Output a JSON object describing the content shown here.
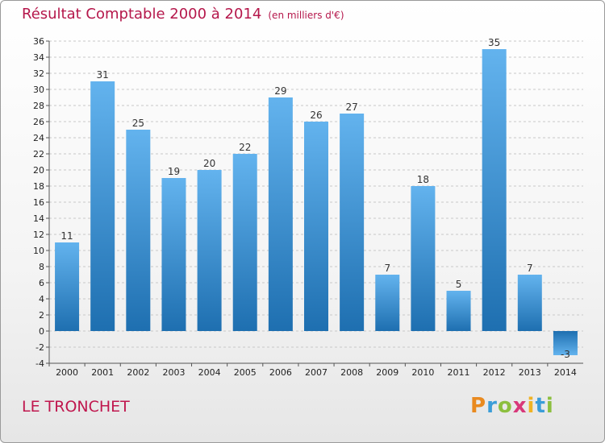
{
  "title": "Résultat Comptable 2000 à 2014",
  "unit_note": "(en milliers d'€)",
  "commune": "LE TRONCHET",
  "logo_text": "Proxiti",
  "colors": {
    "title": "#b5174b",
    "bar_top": "#63b3ee",
    "bar_bottom": "#1e6fb0",
    "grid": "#c8c8c8"
  },
  "chart_data": {
    "type": "bar",
    "categories": [
      "2000",
      "2001",
      "2002",
      "2003",
      "2004",
      "2005",
      "2006",
      "2007",
      "2008",
      "2009",
      "2010",
      "2011",
      "2012",
      "2013",
      "2014"
    ],
    "values": [
      11,
      31,
      25,
      19,
      20,
      22,
      29,
      26,
      27,
      7,
      18,
      5,
      35,
      7,
      -3
    ],
    "title": "Résultat Comptable 2000 à 2014",
    "xlabel": "",
    "ylabel": "",
    "ylim": [
      -4,
      36
    ],
    "yticks": [
      -4,
      -2,
      0,
      2,
      4,
      6,
      8,
      10,
      12,
      14,
      16,
      18,
      20,
      22,
      24,
      26,
      28,
      30,
      32,
      34,
      36
    ],
    "grid": "horizontal dashed",
    "legend": "none"
  }
}
